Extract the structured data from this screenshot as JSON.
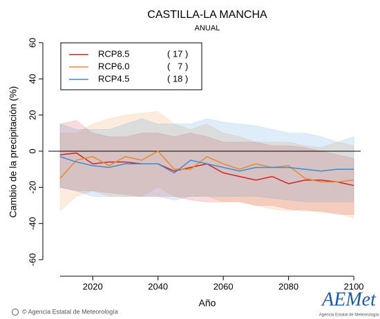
{
  "chart_data": {
    "type": "line",
    "title": "CASTILLA-LA MANCHA",
    "subtitle": "ANUAL",
    "ylabel": "Cambio de la precipitación (%)",
    "xlabel": "Año",
    "x": [
      2010,
      2015,
      2020,
      2025,
      2030,
      2035,
      2040,
      2045,
      2050,
      2055,
      2060,
      2065,
      2070,
      2075,
      2080,
      2085,
      2090,
      2095,
      2100
    ],
    "series": [
      {
        "name": "RCP8.5",
        "count_label": "( 17 )",
        "color": "#d42020",
        "values": [
          -2,
          -1,
          -7,
          -6,
          -6,
          -7,
          -7,
          -11,
          -9,
          -7,
          -12,
          -14,
          -16,
          -14,
          -18,
          -16,
          -16,
          -17,
          -19
        ],
        "upper": [
          15,
          17,
          10,
          8,
          8,
          10,
          10,
          8,
          10,
          8,
          5,
          5,
          5,
          3,
          3,
          2,
          0,
          -2,
          -4
        ],
        "lower": [
          -20,
          -22,
          -22,
          -23,
          -24,
          -25,
          -25,
          -25,
          -27,
          -28,
          -28,
          -28,
          -30,
          -30,
          -32,
          -33,
          -33,
          -35,
          -35
        ]
      },
      {
        "name": "RCP6.0",
        "count_label": "(   7 )",
        "color": "#e8892a",
        "values": [
          -15,
          -5,
          -3,
          -8,
          -3,
          -5,
          0,
          -10,
          -10,
          -3,
          -7,
          -10,
          -7,
          -9,
          -8,
          -15,
          -17,
          -17,
          -16
        ],
        "upper": [
          10,
          10,
          15,
          18,
          20,
          21,
          22,
          15,
          12,
          15,
          10,
          8,
          5,
          5,
          5,
          3,
          2,
          5,
          3
        ],
        "lower": [
          -33,
          -25,
          -22,
          -25,
          -25,
          -25,
          -20,
          -25,
          -25,
          -25,
          -28,
          -28,
          -30,
          -32,
          -33,
          -32,
          -34,
          -34,
          -37
        ]
      },
      {
        "name": "RCP4.5",
        "count_label": "( 18 )",
        "color": "#3a8ad8",
        "values": [
          -3,
          -6,
          -8,
          -9,
          -7,
          -7,
          -7,
          -12,
          -5,
          -7,
          -9,
          -11,
          -9,
          -9,
          -9,
          -10,
          -11,
          -10,
          -10
        ],
        "upper": [
          15,
          12,
          12,
          12,
          15,
          18,
          15,
          15,
          15,
          18,
          16,
          15,
          14,
          12,
          10,
          10,
          8,
          5,
          8
        ],
        "lower": [
          -20,
          -22,
          -25,
          -25,
          -25,
          -25,
          -25,
          -27,
          -25,
          -25,
          -25,
          -25,
          -25,
          -26,
          -27,
          -28,
          -28,
          -28,
          -28
        ]
      }
    ],
    "xlim": [
      2006.4,
      2102.1
    ],
    "ylim": [
      -66.1,
      65.3
    ],
    "xticks": [
      2020,
      2040,
      2060,
      2080,
      2100
    ],
    "yticks": [
      -60,
      -40,
      -20,
      0,
      20,
      40,
      60
    ],
    "reference_line": 0,
    "legend": "upper left"
  },
  "footer": "© Agencia Estatal de Meteorología",
  "logo": {
    "text": "AEMet",
    "subtitle": "Agencia Estatal de Meteorología"
  }
}
